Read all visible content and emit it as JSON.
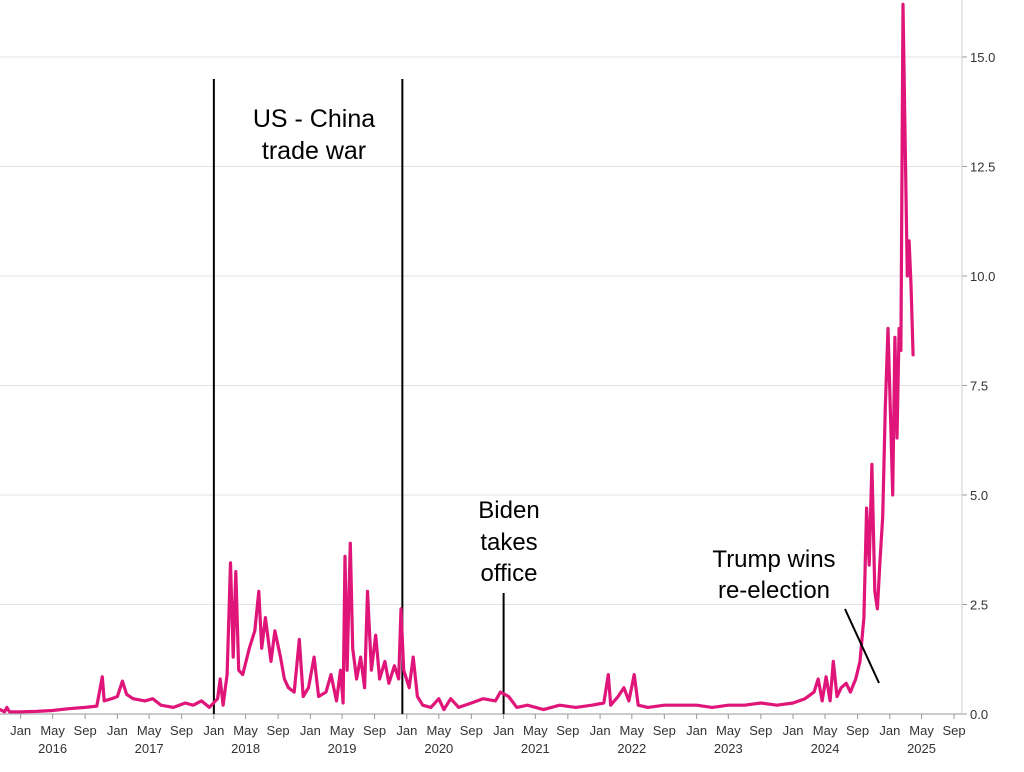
{
  "chart_data": {
    "type": "line",
    "title": "",
    "xlabel": "",
    "ylabel": "",
    "ylim": [
      0,
      16.3
    ],
    "xlim": [
      "2015-10-15",
      "2025-10-01"
    ],
    "y_axis_side": "right",
    "grid": "horizontal",
    "y_ticks": [
      {
        "value": 0,
        "label": "0.0"
      },
      {
        "value": 2.5,
        "label": "2.5"
      },
      {
        "value": 5,
        "label": "5.0"
      },
      {
        "value": 7.5,
        "label": "7.5"
      },
      {
        "value": 10,
        "label": "10.0"
      },
      {
        "value": 12.5,
        "label": "12.5"
      },
      {
        "value": 15,
        "label": "15.0"
      }
    ],
    "x_month_ticks": [
      {
        "date": "2016-01-01",
        "label": "Jan"
      },
      {
        "date": "2016-05-01",
        "label": "May"
      },
      {
        "date": "2016-09-01",
        "label": "Sep"
      },
      {
        "date": "2017-01-01",
        "label": "Jan"
      },
      {
        "date": "2017-05-01",
        "label": "May"
      },
      {
        "date": "2017-09-01",
        "label": "Sep"
      },
      {
        "date": "2018-01-01",
        "label": "Jan"
      },
      {
        "date": "2018-05-01",
        "label": "May"
      },
      {
        "date": "2018-09-01",
        "label": "Sep"
      },
      {
        "date": "2019-01-01",
        "label": "Jan"
      },
      {
        "date": "2019-05-01",
        "label": "May"
      },
      {
        "date": "2019-09-01",
        "label": "Sep"
      },
      {
        "date": "2020-01-01",
        "label": "Jan"
      },
      {
        "date": "2020-05-01",
        "label": "May"
      },
      {
        "date": "2020-09-01",
        "label": "Sep"
      },
      {
        "date": "2021-01-01",
        "label": "Jan"
      },
      {
        "date": "2021-05-01",
        "label": "May"
      },
      {
        "date": "2021-09-01",
        "label": "Sep"
      },
      {
        "date": "2022-01-01",
        "label": "Jan"
      },
      {
        "date": "2022-05-01",
        "label": "May"
      },
      {
        "date": "2022-09-01",
        "label": "Sep"
      },
      {
        "date": "2023-01-01",
        "label": "Jan"
      },
      {
        "date": "2023-05-01",
        "label": "May"
      },
      {
        "date": "2023-09-01",
        "label": "Sep"
      },
      {
        "date": "2024-01-01",
        "label": "Jan"
      },
      {
        "date": "2024-05-01",
        "label": "May"
      },
      {
        "date": "2024-09-01",
        "label": "Sep"
      },
      {
        "date": "2025-01-01",
        "label": "Jan"
      },
      {
        "date": "2025-05-01",
        "label": "May"
      },
      {
        "date": "2025-09-01",
        "label": "Sep"
      }
    ],
    "x_year_labels": [
      {
        "date": "2016-05-01",
        "label": "2016"
      },
      {
        "date": "2017-05-01",
        "label": "2017"
      },
      {
        "date": "2018-05-01",
        "label": "2018"
      },
      {
        "date": "2019-05-01",
        "label": "2019"
      },
      {
        "date": "2020-05-01",
        "label": "2020"
      },
      {
        "date": "2021-05-01",
        "label": "2021"
      },
      {
        "date": "2022-05-01",
        "label": "2022"
      },
      {
        "date": "2023-05-01",
        "label": "2023"
      },
      {
        "date": "2024-05-01",
        "label": "2024"
      },
      {
        "date": "2025-05-01",
        "label": "2025"
      }
    ],
    "series": [
      {
        "color": "#e0157a",
        "points": [
          [
            "2015-10-15",
            0.1
          ],
          [
            "2015-11-01",
            0.05
          ],
          [
            "2015-11-10",
            0.15
          ],
          [
            "2015-11-20",
            0.05
          ],
          [
            "2016-01-01",
            0.05
          ],
          [
            "2016-03-01",
            0.06
          ],
          [
            "2016-05-01",
            0.08
          ],
          [
            "2016-07-01",
            0.12
          ],
          [
            "2016-09-01",
            0.15
          ],
          [
            "2016-10-15",
            0.18
          ],
          [
            "2016-11-05",
            0.85
          ],
          [
            "2016-11-12",
            0.3
          ],
          [
            "2016-12-10",
            0.35
          ],
          [
            "2017-01-01",
            0.4
          ],
          [
            "2017-01-20",
            0.75
          ],
          [
            "2017-02-05",
            0.45
          ],
          [
            "2017-03-01",
            0.35
          ],
          [
            "2017-04-15",
            0.3
          ],
          [
            "2017-05-15",
            0.35
          ],
          [
            "2017-06-15",
            0.2
          ],
          [
            "2017-08-01",
            0.15
          ],
          [
            "2017-09-15",
            0.25
          ],
          [
            "2017-10-15",
            0.2
          ],
          [
            "2017-11-15",
            0.3
          ],
          [
            "2017-12-15",
            0.15
          ],
          [
            "2018-01-15",
            0.35
          ],
          [
            "2018-01-25",
            0.8
          ],
          [
            "2018-02-05",
            0.2
          ],
          [
            "2018-02-20",
            0.9
          ],
          [
            "2018-03-05",
            3.45
          ],
          [
            "2018-03-15",
            1.3
          ],
          [
            "2018-03-25",
            3.25
          ],
          [
            "2018-04-05",
            1.0
          ],
          [
            "2018-04-20",
            0.9
          ],
          [
            "2018-05-15",
            1.5
          ],
          [
            "2018-06-05",
            1.9
          ],
          [
            "2018-06-20",
            2.8
          ],
          [
            "2018-07-01",
            1.5
          ],
          [
            "2018-07-15",
            2.2
          ],
          [
            "2018-08-05",
            1.2
          ],
          [
            "2018-08-20",
            1.9
          ],
          [
            "2018-09-10",
            1.3
          ],
          [
            "2018-09-25",
            0.8
          ],
          [
            "2018-10-10",
            0.6
          ],
          [
            "2018-11-01",
            0.5
          ],
          [
            "2018-11-20",
            1.7
          ],
          [
            "2018-12-05",
            0.4
          ],
          [
            "2018-12-25",
            0.6
          ],
          [
            "2019-01-15",
            1.3
          ],
          [
            "2019-02-01",
            0.4
          ],
          [
            "2019-03-01",
            0.5
          ],
          [
            "2019-03-20",
            0.9
          ],
          [
            "2019-04-10",
            0.3
          ],
          [
            "2019-04-25",
            1.0
          ],
          [
            "2019-05-05",
            0.25
          ],
          [
            "2019-05-12",
            3.6
          ],
          [
            "2019-05-20",
            1.0
          ],
          [
            "2019-06-01",
            3.9
          ],
          [
            "2019-06-10",
            1.5
          ],
          [
            "2019-06-25",
            0.8
          ],
          [
            "2019-07-10",
            1.3
          ],
          [
            "2019-07-25",
            0.6
          ],
          [
            "2019-08-05",
            2.8
          ],
          [
            "2019-08-20",
            1.0
          ],
          [
            "2019-09-05",
            1.8
          ],
          [
            "2019-09-20",
            0.8
          ],
          [
            "2019-10-10",
            1.2
          ],
          [
            "2019-10-25",
            0.7
          ],
          [
            "2019-11-15",
            1.1
          ],
          [
            "2019-12-01",
            0.8
          ],
          [
            "2019-12-10",
            2.4
          ],
          [
            "2019-12-20",
            1.0
          ],
          [
            "2020-01-10",
            0.6
          ],
          [
            "2020-01-25",
            1.3
          ],
          [
            "2020-02-10",
            0.4
          ],
          [
            "2020-03-01",
            0.2
          ],
          [
            "2020-04-01",
            0.15
          ],
          [
            "2020-05-01",
            0.35
          ],
          [
            "2020-05-20",
            0.1
          ],
          [
            "2020-06-15",
            0.35
          ],
          [
            "2020-07-15",
            0.15
          ],
          [
            "2020-09-01",
            0.25
          ],
          [
            "2020-10-15",
            0.35
          ],
          [
            "2020-12-01",
            0.3
          ],
          [
            "2020-12-20",
            0.5
          ],
          [
            "2021-01-20",
            0.4
          ],
          [
            "2021-02-20",
            0.15
          ],
          [
            "2021-04-01",
            0.2
          ],
          [
            "2021-06-01",
            0.1
          ],
          [
            "2021-08-01",
            0.2
          ],
          [
            "2021-10-01",
            0.15
          ],
          [
            "2021-12-01",
            0.2
          ],
          [
            "2022-01-15",
            0.25
          ],
          [
            "2022-02-01",
            0.9
          ],
          [
            "2022-02-10",
            0.2
          ],
          [
            "2022-03-10",
            0.4
          ],
          [
            "2022-04-01",
            0.6
          ],
          [
            "2022-04-20",
            0.3
          ],
          [
            "2022-05-10",
            0.9
          ],
          [
            "2022-05-25",
            0.2
          ],
          [
            "2022-07-01",
            0.15
          ],
          [
            "2022-09-01",
            0.2
          ],
          [
            "2022-11-01",
            0.2
          ],
          [
            "2023-01-01",
            0.2
          ],
          [
            "2023-03-01",
            0.15
          ],
          [
            "2023-05-01",
            0.2
          ],
          [
            "2023-07-01",
            0.2
          ],
          [
            "2023-09-01",
            0.25
          ],
          [
            "2023-11-01",
            0.2
          ],
          [
            "2024-01-01",
            0.25
          ],
          [
            "2024-02-15",
            0.35
          ],
          [
            "2024-03-20",
            0.5
          ],
          [
            "2024-04-05",
            0.8
          ],
          [
            "2024-04-20",
            0.3
          ],
          [
            "2024-05-05",
            0.85
          ],
          [
            "2024-05-20",
            0.3
          ],
          [
            "2024-06-01",
            1.2
          ],
          [
            "2024-06-15",
            0.4
          ],
          [
            "2024-07-01",
            0.6
          ],
          [
            "2024-07-20",
            0.7
          ],
          [
            "2024-08-05",
            0.5
          ],
          [
            "2024-08-25",
            0.8
          ],
          [
            "2024-09-10",
            1.2
          ],
          [
            "2024-09-25",
            2.2
          ],
          [
            "2024-10-05",
            4.7
          ],
          [
            "2024-10-15",
            3.4
          ],
          [
            "2024-10-25",
            5.7
          ],
          [
            "2024-11-05",
            2.8
          ],
          [
            "2024-11-15",
            2.4
          ],
          [
            "2024-11-25",
            3.5
          ],
          [
            "2024-12-05",
            4.5
          ],
          [
            "2024-12-15",
            7.0
          ],
          [
            "2024-12-25",
            8.8
          ],
          [
            "2025-01-05",
            6.5
          ],
          [
            "2025-01-12",
            5.0
          ],
          [
            "2025-01-20",
            8.6
          ],
          [
            "2025-01-28",
            6.3
          ],
          [
            "2025-02-05",
            8.8
          ],
          [
            "2025-02-12",
            8.3
          ],
          [
            "2025-02-20",
            16.2
          ],
          [
            "2025-02-28",
            13.0
          ],
          [
            "2025-03-08",
            10.0
          ],
          [
            "2025-03-15",
            10.8
          ],
          [
            "2025-03-22",
            9.8
          ],
          [
            "2025-03-30",
            8.2
          ]
        ]
      }
    ],
    "annotations": [
      {
        "lines": [
          "US - China",
          "trade war"
        ]
      },
      {
        "lines": [
          "Biden",
          "takes",
          "office"
        ]
      },
      {
        "lines": [
          "Trump wins",
          "re-election"
        ]
      }
    ],
    "vertical_markers": [
      "2018-01-01",
      "2019-12-15",
      "2021-01-01"
    ]
  }
}
